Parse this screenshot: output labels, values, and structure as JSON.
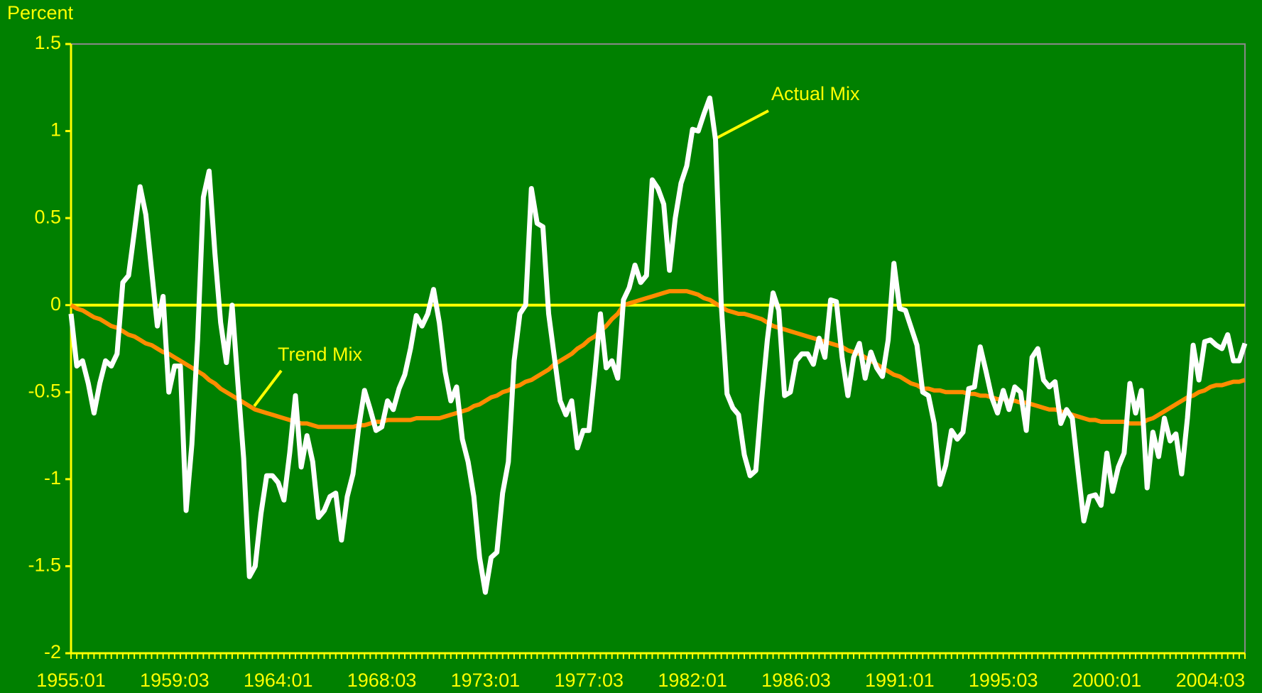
{
  "chart_data": {
    "type": "line",
    "y_label": "Percent",
    "ylim": [
      -2,
      1.5
    ],
    "yticks": [
      1.5,
      1,
      0.5,
      0,
      -0.5,
      -1,
      -1.5,
      -2
    ],
    "zero_line": true,
    "annotations": [
      "Actual Mix",
      "Trend Mix"
    ],
    "categories": [
      "1955:01",
      null,
      null,
      null,
      null,
      null,
      null,
      null,
      null,
      null,
      null,
      null,
      null,
      null,
      null,
      null,
      null,
      null,
      "1959:03",
      null,
      null,
      null,
      null,
      null,
      null,
      null,
      null,
      null,
      null,
      null,
      null,
      null,
      null,
      null,
      null,
      null,
      "1964:01",
      null,
      null,
      null,
      null,
      null,
      null,
      null,
      null,
      null,
      null,
      null,
      null,
      null,
      null,
      null,
      null,
      null,
      "1968:03",
      null,
      null,
      null,
      null,
      null,
      null,
      null,
      null,
      null,
      null,
      null,
      null,
      null,
      null,
      null,
      null,
      null,
      "1973:01",
      null,
      null,
      null,
      null,
      null,
      null,
      null,
      null,
      null,
      null,
      null,
      null,
      null,
      null,
      null,
      null,
      null,
      "1977:03",
      null,
      null,
      null,
      null,
      null,
      null,
      null,
      null,
      null,
      null,
      null,
      null,
      null,
      null,
      null,
      null,
      null,
      "1982:01",
      null,
      null,
      null,
      null,
      null,
      null,
      null,
      null,
      null,
      null,
      null,
      null,
      null,
      null,
      null,
      null,
      null,
      "1986:03",
      null,
      null,
      null,
      null,
      null,
      null,
      null,
      null,
      null,
      null,
      null,
      null,
      null,
      null,
      null,
      null,
      null,
      "1991:01",
      null,
      null,
      null,
      null,
      null,
      null,
      null,
      null,
      null,
      null,
      null,
      null,
      null,
      null,
      null,
      null,
      null,
      "1995:03",
      null,
      null,
      null,
      null,
      null,
      null,
      null,
      null,
      null,
      null,
      null,
      null,
      null,
      null,
      null,
      null,
      null,
      "2000:01",
      null,
      null,
      null,
      null,
      null,
      null,
      null,
      null,
      null,
      null,
      null,
      null,
      null,
      null,
      null,
      null,
      null,
      "2004:03",
      null,
      null,
      null,
      null,
      null,
      null
    ],
    "series": [
      {
        "name": "Actual Mix",
        "color": "#ffffff",
        "values": [
          -0.05,
          -0.35,
          -0.32,
          -0.45,
          -0.62,
          -0.45,
          -0.32,
          -0.35,
          -0.28,
          0.13,
          0.17,
          0.42,
          0.68,
          0.52,
          0.2,
          -0.12,
          0.05,
          -0.5,
          -0.35,
          -0.35,
          -1.18,
          -0.8,
          -0.2,
          0.62,
          0.77,
          0.3,
          -0.1,
          -0.33,
          0.0,
          -0.45,
          -0.88,
          -1.56,
          -1.5,
          -1.2,
          -0.98,
          -0.98,
          -1.02,
          -1.12,
          -0.85,
          -0.52,
          -0.93,
          -0.75,
          -0.9,
          -1.22,
          -1.18,
          -1.1,
          -1.08,
          -1.35,
          -1.1,
          -0.97,
          -0.7,
          -0.49,
          -0.6,
          -0.72,
          -0.7,
          -0.55,
          -0.6,
          -0.48,
          -0.4,
          -0.25,
          -0.06,
          -0.12,
          -0.05,
          0.09,
          -0.1,
          -0.38,
          -0.55,
          -0.47,
          -0.77,
          -0.9,
          -1.1,
          -1.45,
          -1.65,
          -1.45,
          -1.42,
          -1.08,
          -0.9,
          -0.32,
          -0.05,
          0.0,
          0.67,
          0.47,
          0.45,
          -0.05,
          -0.3,
          -0.55,
          -0.63,
          -0.55,
          -0.82,
          -0.72,
          -0.72,
          -0.4,
          -0.05,
          -0.36,
          -0.32,
          -0.42,
          0.03,
          0.1,
          0.23,
          0.13,
          0.17,
          0.72,
          0.67,
          0.58,
          0.2,
          0.5,
          0.7,
          0.8,
          1.01,
          1.0,
          1.1,
          1.19,
          0.95,
          0.0,
          -0.51,
          -0.59,
          -0.63,
          -0.86,
          -0.98,
          -0.95,
          -0.55,
          -0.2,
          0.07,
          -0.03,
          -0.52,
          -0.5,
          -0.32,
          -0.28,
          -0.28,
          -0.34,
          -0.19,
          -0.3,
          0.03,
          0.02,
          -0.3,
          -0.52,
          -0.3,
          -0.22,
          -0.42,
          -0.27,
          -0.36,
          -0.41,
          -0.2,
          0.24,
          -0.02,
          -0.03,
          -0.13,
          -0.23,
          -0.5,
          -0.52,
          -0.68,
          -1.03,
          -0.92,
          -0.72,
          -0.77,
          -0.73,
          -0.48,
          -0.47,
          -0.24,
          -0.38,
          -0.53,
          -0.62,
          -0.49,
          -0.6,
          -0.47,
          -0.5,
          -0.72,
          -0.3,
          -0.25,
          -0.43,
          -0.47,
          -0.44,
          -0.68,
          -0.6,
          -0.65,
          -0.95,
          -1.24,
          -1.1,
          -1.09,
          -1.15,
          -0.85,
          -1.07,
          -0.93,
          -0.85,
          -0.45,
          -0.62,
          -0.49,
          -1.05,
          -0.73,
          -0.87,
          -0.65,
          -0.78,
          -0.74,
          -0.97,
          -0.65,
          -0.23,
          -0.43,
          -0.21,
          -0.2,
          -0.23,
          -0.25,
          -0.17,
          -0.32,
          -0.32,
          -0.22
        ]
      },
      {
        "name": "Trend Mix",
        "color": "#ff8c00",
        "values": [
          0,
          -0.02,
          -0.03,
          -0.05,
          -0.07,
          -0.08,
          -0.1,
          -0.12,
          -0.13,
          -0.15,
          -0.17,
          -0.18,
          -0.2,
          -0.22,
          -0.23,
          -0.25,
          -0.27,
          -0.28,
          -0.3,
          -0.32,
          -0.34,
          -0.36,
          -0.38,
          -0.4,
          -0.43,
          -0.45,
          -0.48,
          -0.5,
          -0.52,
          -0.54,
          -0.56,
          -0.58,
          -0.6,
          -0.61,
          -0.62,
          -0.63,
          -0.64,
          -0.65,
          -0.66,
          -0.67,
          -0.68,
          -0.68,
          -0.69,
          -0.7,
          -0.7,
          -0.7,
          -0.7,
          -0.7,
          -0.7,
          -0.7,
          -0.69,
          -0.69,
          -0.68,
          -0.67,
          -0.67,
          -0.66,
          -0.66,
          -0.66,
          -0.66,
          -0.66,
          -0.65,
          -0.65,
          -0.65,
          -0.65,
          -0.65,
          -0.64,
          -0.63,
          -0.62,
          -0.61,
          -0.6,
          -0.58,
          -0.57,
          -0.55,
          -0.53,
          -0.52,
          -0.5,
          -0.49,
          -0.47,
          -0.46,
          -0.44,
          -0.43,
          -0.41,
          -0.39,
          -0.37,
          -0.34,
          -0.32,
          -0.3,
          -0.28,
          -0.25,
          -0.23,
          -0.2,
          -0.18,
          -0.15,
          -0.12,
          -0.08,
          -0.05,
          0,
          0.01,
          0.02,
          0.03,
          0.04,
          0.05,
          0.06,
          0.07,
          0.08,
          0.08,
          0.08,
          0.08,
          0.07,
          0.06,
          0.04,
          0.03,
          0.01,
          -0.01,
          -0.03,
          -0.04,
          -0.05,
          -0.05,
          -0.06,
          -0.07,
          -0.08,
          -0.1,
          -0.12,
          -0.13,
          -0.14,
          -0.15,
          -0.16,
          -0.17,
          -0.18,
          -0.19,
          -0.2,
          -0.21,
          -0.22,
          -0.23,
          -0.24,
          -0.26,
          -0.27,
          -0.28,
          -0.3,
          -0.32,
          -0.34,
          -0.36,
          -0.38,
          -0.4,
          -0.41,
          -0.43,
          -0.45,
          -0.46,
          -0.48,
          -0.48,
          -0.49,
          -0.49,
          -0.5,
          -0.5,
          -0.5,
          -0.5,
          -0.51,
          -0.51,
          -0.52,
          -0.52,
          -0.53,
          -0.54,
          -0.54,
          -0.55,
          -0.55,
          -0.56,
          -0.56,
          -0.57,
          -0.58,
          -0.59,
          -0.6,
          -0.6,
          -0.61,
          -0.62,
          -0.63,
          -0.64,
          -0.65,
          -0.66,
          -0.66,
          -0.67,
          -0.67,
          -0.67,
          -0.67,
          -0.67,
          -0.68,
          -0.68,
          -0.68,
          -0.66,
          -0.65,
          -0.63,
          -0.61,
          -0.59,
          -0.57,
          -0.55,
          -0.53,
          -0.52,
          -0.5,
          -0.49,
          -0.47,
          -0.46,
          -0.46,
          -0.45,
          -0.44,
          -0.44,
          -0.43
        ]
      }
    ]
  }
}
